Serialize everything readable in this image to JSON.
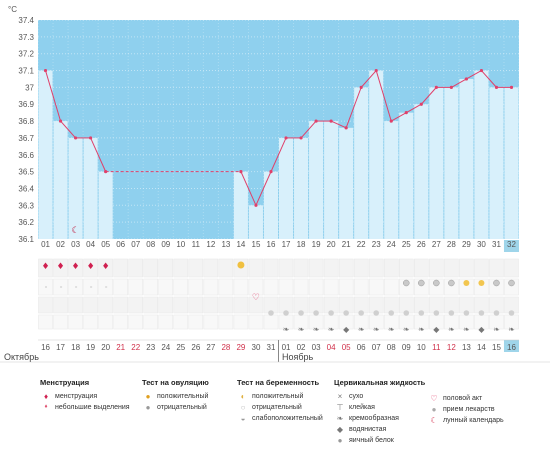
{
  "chart_data": {
    "type": "line",
    "ylabel": "°C",
    "ylim": [
      36.1,
      37.4
    ],
    "yticks": [
      "37.4",
      "37.3",
      "37.2",
      "37.1",
      "37",
      "36.9",
      "36.8",
      "36.7",
      "36.6",
      "36.5",
      "36.4",
      "36.3",
      "36.2",
      "36.1"
    ],
    "cycle_days": [
      "01",
      "02",
      "03",
      "04",
      "05",
      "06",
      "07",
      "08",
      "09",
      "10",
      "11",
      "12",
      "13",
      "14",
      "15",
      "16",
      "17",
      "18",
      "19",
      "20",
      "21",
      "22",
      "23",
      "24",
      "25",
      "26",
      "27",
      "28",
      "29",
      "30",
      "31",
      "32"
    ],
    "dates": [
      "16",
      "17",
      "18",
      "19",
      "20",
      "21",
      "22",
      "23",
      "24",
      "25",
      "26",
      "27",
      "28",
      "29",
      "30",
      "31",
      "01",
      "02",
      "03",
      "04",
      "05",
      "06",
      "07",
      "08",
      "09",
      "10",
      "11",
      "12",
      "13",
      "14",
      "15",
      "16"
    ],
    "weekend_dates_index": [
      5,
      6,
      12,
      13,
      19,
      20,
      26,
      27
    ],
    "months": [
      "Октябрь",
      "Ноябрь"
    ],
    "temperatures": [
      37.1,
      36.8,
      36.7,
      36.7,
      36.5,
      null,
      null,
      null,
      null,
      null,
      null,
      null,
      null,
      36.5,
      36.3,
      36.5,
      36.7,
      36.7,
      36.8,
      36.8,
      36.76,
      37.0,
      37.1,
      36.8,
      36.85,
      36.9,
      37.0,
      37.0,
      37.05,
      37.1,
      37.0,
      37.0
    ],
    "today_index": 31
  },
  "legend": {
    "menstruation": {
      "title": "Менструация",
      "items": [
        "менструация",
        "небольшие выделения"
      ]
    },
    "ovulation": {
      "title": "Тест на овуляцию",
      "items": [
        "положительный",
        "отрицательный"
      ]
    },
    "pregnancy": {
      "title": "Тест на беременность",
      "items": [
        "положительный",
        "отрицательный",
        "слабоположительный"
      ]
    },
    "fluid": {
      "title": "Цервикальная жидкость",
      "items": [
        "сухо",
        "клейкая",
        "кремообразная",
        "водянистая",
        "яичный белок"
      ]
    },
    "other": {
      "items": [
        "половой акт",
        "прием лекарств",
        "лунный календарь"
      ]
    }
  },
  "colors": {
    "plot_bg": "#8fd0ee",
    "bar": "#d8f0fb",
    "line": "#e0406a",
    "weekend": "#d0304a",
    "today": "#9fd5ea"
  }
}
